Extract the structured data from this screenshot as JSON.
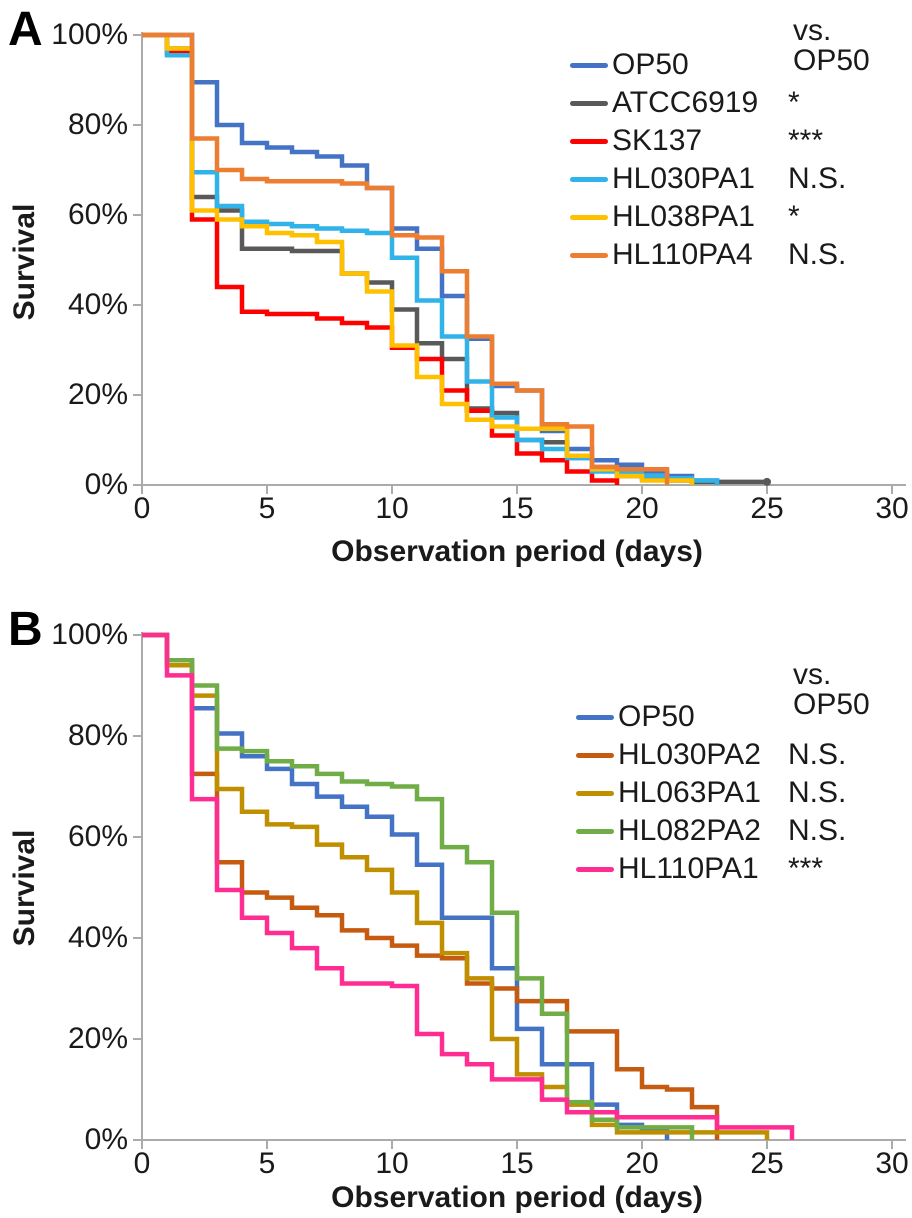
{
  "chart_data": [
    {
      "type": "line",
      "subtype": "kaplan-meier-step-survival",
      "panel_letter": "A",
      "comparison_header": "vs. OP50",
      "xlabel": "Observation period (days)",
      "ylabel": "Survival",
      "xlim": [
        0,
        30
      ],
      "ylim": [
        0,
        100
      ],
      "xticks": [
        0,
        5,
        10,
        15,
        20,
        25,
        30
      ],
      "ytick_labels": [
        "100%",
        "80%",
        "60%",
        "40%",
        "20%",
        "0%"
      ],
      "grid": false,
      "legend_position": "upper right",
      "axis_color": "#ABABAB",
      "series": [
        {
          "name": "OP50",
          "color": "#4472C4",
          "significance": "",
          "start_day": 0,
          "day_step": 1,
          "values": [
            100,
            100,
            89.5,
            80,
            76,
            75,
            74,
            73,
            71,
            66,
            57,
            52.5,
            42,
            32.5,
            22,
            21,
            12,
            8,
            5.5,
            4.5,
            3,
            2,
            1,
            0
          ]
        },
        {
          "name": "ATCC6919",
          "color": "#595959",
          "significance": "*",
          "start_day": 0,
          "day_step": 1,
          "end_dot": true,
          "values": [
            100,
            97,
            64,
            61,
            52.5,
            52.5,
            52,
            52,
            47,
            45,
            39,
            31.5,
            28,
            17,
            16,
            10,
            9.5,
            6,
            4,
            2,
            1.5,
            1,
            0.7,
            0.7,
            0.7,
            0.7
          ]
        },
        {
          "name": "SK137",
          "color": "#FF0000",
          "significance": "***",
          "start_day": 0,
          "day_step": 1,
          "values": [
            100,
            96,
            59,
            44,
            38.5,
            38,
            38,
            37,
            36,
            35,
            30.5,
            28,
            21,
            16.5,
            11,
            7,
            5.5,
            3,
            1,
            0
          ]
        },
        {
          "name": "HL030PA1",
          "color": "#2FB3E8",
          "significance": "N.S.",
          "start_day": 0,
          "day_step": 1,
          "values": [
            100,
            95.5,
            69.5,
            62,
            58.5,
            58,
            57.5,
            57,
            56.5,
            56,
            50.5,
            41,
            33,
            23,
            15,
            10,
            8,
            6,
            3,
            2.5,
            2,
            1.5,
            1,
            0
          ]
        },
        {
          "name": "HL038PA1",
          "color": "#FFC000",
          "significance": "*",
          "start_day": 0,
          "day_step": 1,
          "values": [
            100,
            97,
            61,
            59,
            57.5,
            56,
            55.5,
            54,
            47,
            43,
            31,
            24,
            18,
            14.5,
            13,
            12.5,
            12.5,
            6.5,
            3.5,
            2,
            1,
            1,
            0
          ]
        },
        {
          "name": "HL110PA4",
          "color": "#ED7D31",
          "significance": "N.S.",
          "start_day": 0,
          "day_step": 1,
          "values": [
            100,
            100,
            77,
            70,
            68,
            67.5,
            67.5,
            67.5,
            67,
            66,
            55.5,
            55,
            47.5,
            33,
            22.5,
            21,
            13.5,
            13,
            4,
            3.5,
            3.5,
            0
          ]
        }
      ]
    },
    {
      "type": "line",
      "subtype": "kaplan-meier-step-survival",
      "panel_letter": "B",
      "comparison_header": "vs. OP50",
      "xlabel": "Observation period (days)",
      "ylabel": "Survival",
      "xlim": [
        0,
        30
      ],
      "ylim": [
        0,
        100
      ],
      "xticks": [
        0,
        5,
        10,
        15,
        20,
        25,
        30
      ],
      "ytick_labels": [
        "100%",
        "80%",
        "60%",
        "40%",
        "20%",
        "0%"
      ],
      "grid": false,
      "legend_position": "upper right",
      "axis_color": "#ABABAB",
      "series": [
        {
          "name": "OP50",
          "color": "#4472C4",
          "significance": "",
          "start_day": 0,
          "day_step": 1,
          "values": [
            100,
            95,
            85.5,
            80.5,
            76,
            73.5,
            70.5,
            68,
            66,
            64,
            60.5,
            54.5,
            44,
            44,
            34,
            22,
            15,
            15,
            7,
            3,
            2,
            0
          ]
        },
        {
          "name": "HL030PA2",
          "color": "#C55A11",
          "significance": "N.S.",
          "start_day": 0,
          "day_step": 1,
          "values": [
            100,
            94,
            72.5,
            55,
            49,
            48,
            46,
            44.5,
            41.5,
            40,
            38.5,
            36.5,
            36,
            31,
            30,
            27.5,
            27.5,
            21.5,
            21.5,
            14,
            10.5,
            10,
            6.5,
            0
          ]
        },
        {
          "name": "HL063PA1",
          "color": "#BF8F00",
          "significance": "N.S.",
          "start_day": 0,
          "day_step": 1,
          "values": [
            100,
            94,
            88,
            69.5,
            65,
            62.5,
            62,
            58.5,
            56,
            53.5,
            49,
            43,
            37,
            32,
            20,
            13,
            10.5,
            7,
            3,
            1.5,
            1.5,
            1.5,
            1.5,
            1.5,
            1.5,
            0
          ]
        },
        {
          "name": "HL082PA2",
          "color": "#70AD47",
          "significance": "N.S.",
          "start_day": 0,
          "day_step": 1,
          "values": [
            100,
            95,
            90,
            77.5,
            77,
            75,
            74,
            72.5,
            71,
            70.5,
            70,
            67.5,
            58,
            55,
            45,
            32,
            25,
            7.5,
            4,
            2.5,
            2.5,
            2.5,
            0
          ]
        },
        {
          "name": "HL110PA1",
          "color": "#FF2D92",
          "significance": "***",
          "start_day": 0,
          "day_step": 1,
          "values": [
            100,
            92,
            67.5,
            49.5,
            44,
            41,
            38,
            34,
            31,
            31,
            30.5,
            21,
            17,
            15,
            12,
            12,
            8,
            5.5,
            5.5,
            4.5,
            4.5,
            4.5,
            4.5,
            2.5,
            2.5,
            2.5,
            0
          ]
        }
      ]
    }
  ]
}
